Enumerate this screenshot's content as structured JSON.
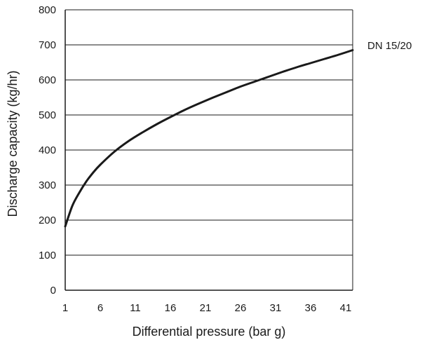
{
  "chart_data": {
    "type": "line",
    "title": "",
    "xlabel": "Differential pressure (bar g)",
    "ylabel": "Discharge capacity (kg/hr)",
    "xlim": [
      1,
      42
    ],
    "ylim": [
      0,
      800
    ],
    "xticks": [
      1,
      6,
      11,
      16,
      21,
      26,
      31,
      36,
      41
    ],
    "yticks": [
      0,
      100,
      200,
      300,
      400,
      500,
      600,
      700,
      800
    ],
    "grid": "horizontal",
    "series": [
      {
        "name": "DN 15/20",
        "color": "#1a1a1a",
        "x": [
          1,
          2,
          3,
          4,
          5,
          6,
          8,
          10,
          12,
          14,
          16,
          18,
          20,
          22,
          24,
          26,
          28,
          30,
          32,
          34,
          36,
          38,
          40,
          42
        ],
        "y": [
          182,
          240,
          278,
          310,
          336,
          358,
          395,
          425,
          450,
          473,
          494,
          514,
          532,
          549,
          565,
          581,
          595,
          609,
          623,
          636,
          648,
          660,
          672,
          685
        ]
      }
    ]
  }
}
